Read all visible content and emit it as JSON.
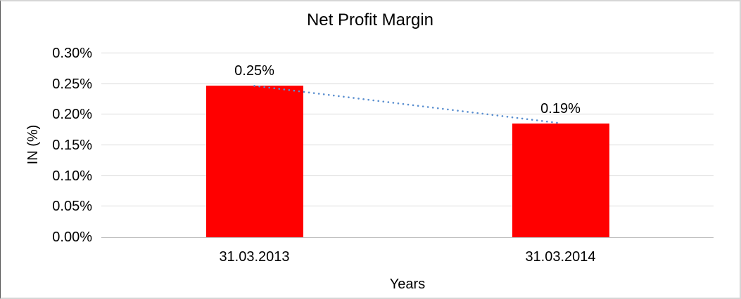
{
  "chart_data": {
    "type": "bar",
    "title": "Net Profit Margin",
    "xlabel": "Years",
    "ylabel": "IN (%)",
    "categories": [
      "31.03.2013",
      "31.03.2014"
    ],
    "values": [
      0.247,
      0.186
    ],
    "data_labels": [
      "0.25%",
      "0.19%"
    ],
    "y_ticks": [
      {
        "label": "0.00%",
        "value": 0.0
      },
      {
        "label": "0.05%",
        "value": 0.05
      },
      {
        "label": "0.10%",
        "value": 0.1
      },
      {
        "label": "0.15%",
        "value": 0.15
      },
      {
        "label": "0.20%",
        "value": 0.2
      },
      {
        "label": "0.25%",
        "value": 0.25
      },
      {
        "label": "0.30%",
        "value": 0.3
      }
    ],
    "ylim": [
      0,
      0.3
    ],
    "y_tick_step": 0.05,
    "grid": true,
    "legend": "none",
    "bar_color": "#ff0000",
    "gridline_color": "#d9d9d9",
    "axis_line_color": "#bfbfbf",
    "trendline": {
      "style": "dotted",
      "color": "#5a8fd0",
      "connects": [
        "0.25%",
        "0.19%"
      ]
    }
  }
}
